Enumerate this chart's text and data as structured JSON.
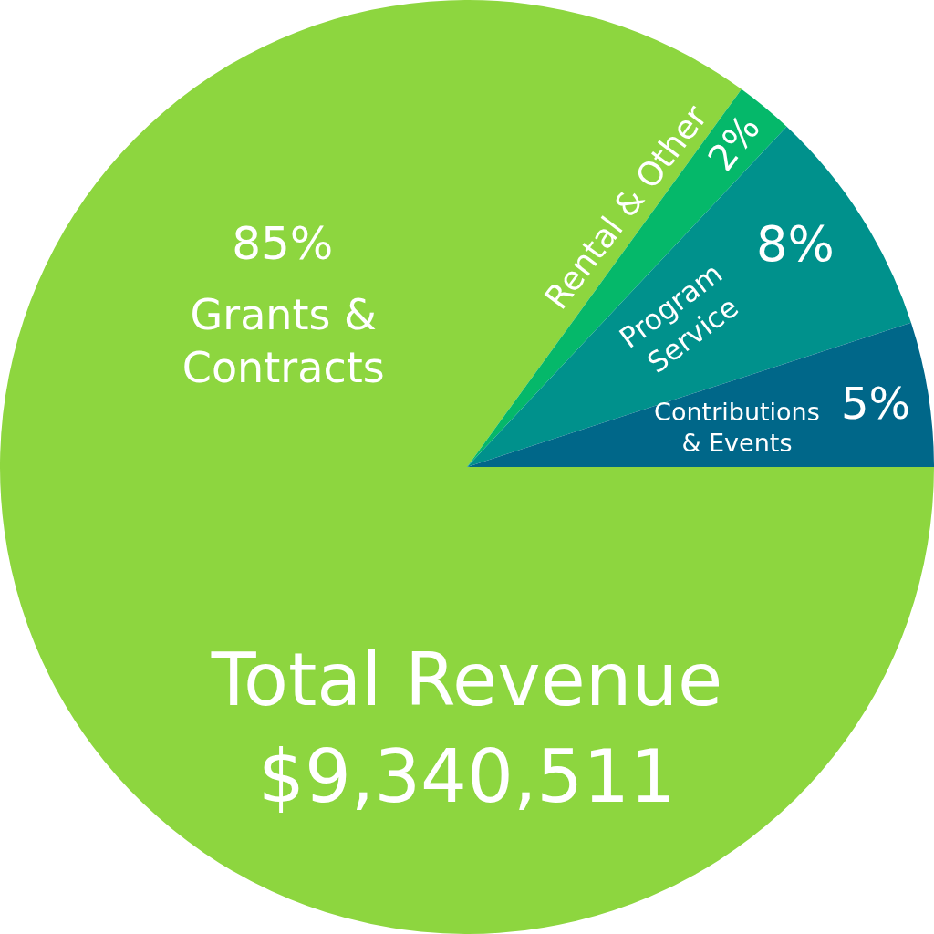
{
  "chart_data": {
    "type": "pie",
    "title": "Total Revenue $9,340,511",
    "categories": [
      "Grants & Contracts",
      "Rental & Other",
      "Program Service",
      "Contributions & Events"
    ],
    "values": [
      85,
      2,
      8,
      5
    ],
    "colors": [
      "#8dd63f",
      "#05b86a",
      "#00918c",
      "#006789"
    ],
    "value_labels": [
      "85%",
      "2%",
      "8%",
      "5%"
    ],
    "legend": false
  }
}
